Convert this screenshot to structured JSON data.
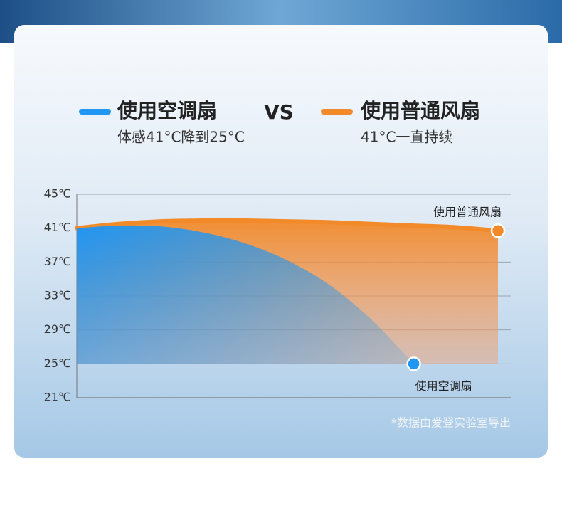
{
  "chart_data": {
    "type": "area-line",
    "vs_label": "VS",
    "note": "*数据由爱登实验室导出",
    "categories": [
      null,
      null,
      null,
      null,
      null,
      null,
      null,
      null,
      null,
      null,
      null
    ],
    "series": [
      {
        "name": "使用空调扇",
        "description": "体感41°C降到25°C",
        "color": "#2196f3",
        "values": [
          41,
          41.3,
          41.2,
          40.5,
          39.2,
          37.2,
          34.3,
          30.2,
          25,
          null,
          null
        ]
      },
      {
        "name": "使用普通风扇",
        "description": "41°C一直持续",
        "color": "#f28a2a",
        "values": [
          41,
          41.5,
          41.8,
          41.9,
          41.9,
          41.8,
          41.7,
          41.5,
          41.3,
          41.1,
          40.7
        ]
      }
    ],
    "ylim": [
      21,
      45
    ],
    "yticks": [
      {
        "value": 45,
        "label": "45℃"
      },
      {
        "value": 41,
        "label": "41℃"
      },
      {
        "value": 37,
        "label": "37℃"
      },
      {
        "value": 33,
        "label": "33℃"
      },
      {
        "value": 29,
        "label": "29℃"
      },
      {
        "value": 25,
        "label": "25℃"
      },
      {
        "value": 21,
        "label": "21℃"
      }
    ],
    "grid": true
  }
}
